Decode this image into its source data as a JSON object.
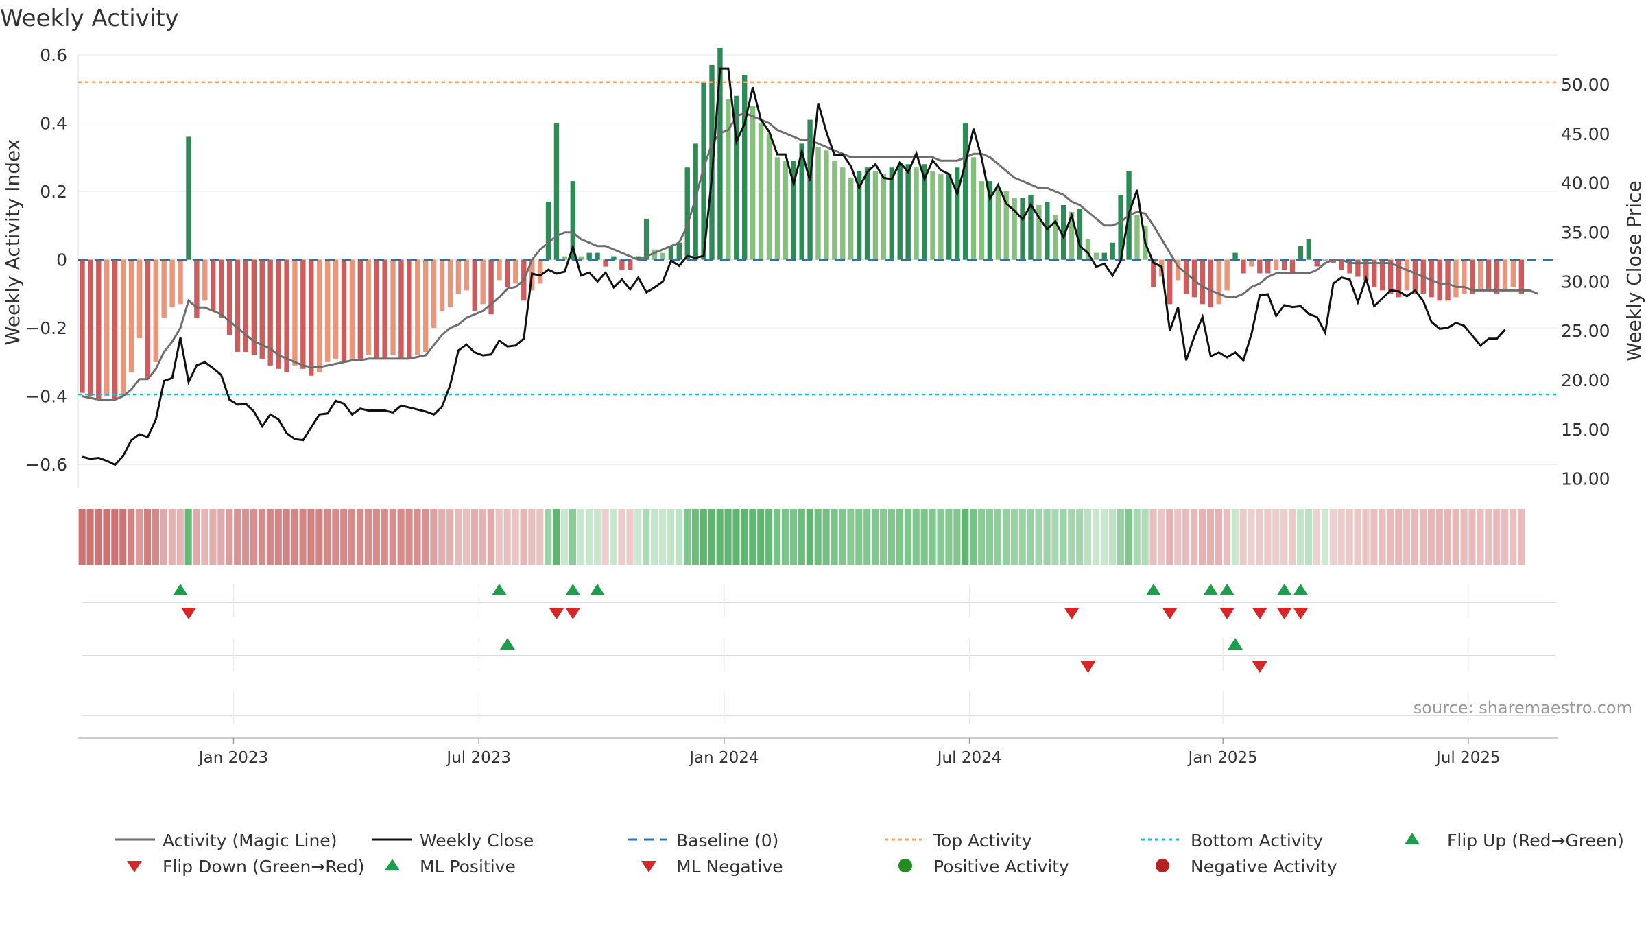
{
  "chart_data": {
    "type": "bar",
    "title": "Weekly Activity",
    "ylabel_left": "Weekly Activity Index",
    "ylabel_right": "Weekly Close Price",
    "source": "source: sharemaestro.com",
    "ylim_left": [
      -0.67,
      0.6
    ],
    "ylim_right": [
      9.0,
      53.0
    ],
    "yticks_left": [
      0.6,
      0.4,
      0.2,
      0,
      -0.2,
      -0.4,
      -0.6
    ],
    "yticks_left_labels": [
      "0.6",
      "0.4",
      "0.2",
      "0",
      "−0.2",
      "−0.4",
      "−0.6"
    ],
    "yticks_right": [
      50,
      45,
      40,
      35,
      30,
      25,
      20,
      15,
      10
    ],
    "yticks_right_labels": [
      "50.00",
      "45.00",
      "40.00",
      "35.00",
      "30.00",
      "25.00",
      "20.00",
      "15.00",
      "10.00"
    ],
    "x_tick_positions": [
      19,
      49,
      79,
      109,
      140,
      170
    ],
    "x_tick_labels": [
      "Jan 2023",
      "Jul 2023",
      "Jan 2024",
      "Jul 2024",
      "Jan 2025",
      "Jul 2025"
    ],
    "n_weeks": 181,
    "top_activity": 0.52,
    "bottom_activity": -0.395,
    "activity": [
      -0.39,
      -0.4,
      -0.41,
      -0.4,
      -0.41,
      -0.4,
      -0.33,
      -0.23,
      -0.35,
      -0.3,
      -0.17,
      -0.14,
      -0.13,
      0.36,
      -0.17,
      -0.12,
      -0.15,
      -0.17,
      -0.22,
      -0.27,
      -0.27,
      -0.28,
      -0.29,
      -0.31,
      -0.32,
      -0.33,
      -0.31,
      -0.32,
      -0.34,
      -0.33,
      -0.3,
      -0.29,
      -0.3,
      -0.29,
      -0.29,
      -0.28,
      -0.29,
      -0.29,
      -0.28,
      -0.29,
      -0.29,
      -0.28,
      -0.27,
      -0.2,
      -0.15,
      -0.14,
      -0.1,
      -0.09,
      -0.15,
      -0.13,
      -0.16,
      -0.06,
      -0.08,
      -0.07,
      -0.12,
      -0.09,
      -0.07,
      0.17,
      0.4,
      0.01,
      0.23,
      0.01,
      0.02,
      0.02,
      -0.02,
      0.01,
      -0.03,
      -0.03,
      0.01,
      0.12,
      0.03,
      0.02,
      0.04,
      0.05,
      0.27,
      0.34,
      0.52,
      0.57,
      0.62,
      0.47,
      0.48,
      0.54,
      0.45,
      0.4,
      0.37,
      0.3,
      0.29,
      0.29,
      0.34,
      0.41,
      0.33,
      0.32,
      0.29,
      0.27,
      0.24,
      0.26,
      0.27,
      0.26,
      0.25,
      0.27,
      0.28,
      0.28,
      0.27,
      0.28,
      0.26,
      0.25,
      0.25,
      0.27,
      0.4,
      0.3,
      0.23,
      0.23,
      0.21,
      0.2,
      0.18,
      0.18,
      0.19,
      0.16,
      0.17,
      0.13,
      0.16,
      0.14,
      0.15,
      0.06,
      0.02,
      0.02,
      0.05,
      0.19,
      0.26,
      0.13,
      0.1,
      -0.08,
      -0.05,
      -0.13,
      -0.06,
      -0.1,
      -0.11,
      -0.13,
      -0.14,
      -0.13,
      -0.09,
      0.02,
      -0.04,
      -0.02,
      -0.04,
      -0.04,
      -0.03,
      -0.03,
      -0.04,
      0.04,
      0.06,
      -0.02,
      0,
      -0.01,
      -0.03,
      -0.04,
      -0.05,
      -0.06,
      -0.08,
      -0.09,
      -0.1,
      -0.11,
      -0.09,
      -0.1,
      -0.1,
      -0.11,
      -0.12,
      -0.12,
      -0.11,
      -0.1,
      -0.1,
      -0.09,
      -0.09,
      -0.1,
      -0.09,
      -0.08,
      -0.1
    ],
    "magic_line": [
      -0.4,
      -0.405,
      -0.41,
      -0.41,
      -0.41,
      -0.4,
      -0.38,
      -0.35,
      -0.35,
      -0.32,
      -0.27,
      -0.24,
      -0.2,
      -0.12,
      -0.14,
      -0.14,
      -0.15,
      -0.16,
      -0.18,
      -0.2,
      -0.22,
      -0.24,
      -0.25,
      -0.26,
      -0.28,
      -0.29,
      -0.3,
      -0.31,
      -0.315,
      -0.315,
      -0.31,
      -0.305,
      -0.3,
      -0.295,
      -0.295,
      -0.29,
      -0.29,
      -0.29,
      -0.29,
      -0.29,
      -0.29,
      -0.285,
      -0.28,
      -0.25,
      -0.22,
      -0.2,
      -0.19,
      -0.17,
      -0.16,
      -0.15,
      -0.13,
      -0.11,
      -0.085,
      -0.08,
      -0.06,
      0.0,
      0.03,
      0.05,
      0.07,
      0.08,
      0.08,
      0.06,
      0.05,
      0.04,
      0.04,
      0.03,
      0.02,
      0.01,
      0.0,
      0.01,
      0.02,
      0.03,
      0.04,
      0.05,
      0.1,
      0.18,
      0.27,
      0.34,
      0.37,
      0.38,
      0.42,
      0.43,
      0.42,
      0.41,
      0.4,
      0.38,
      0.37,
      0.36,
      0.35,
      0.35,
      0.34,
      0.33,
      0.32,
      0.31,
      0.3,
      0.3,
      0.3,
      0.3,
      0.3,
      0.3,
      0.3,
      0.3,
      0.3,
      0.3,
      0.3,
      0.29,
      0.29,
      0.29,
      0.3,
      0.31,
      0.31,
      0.3,
      0.28,
      0.26,
      0.24,
      0.23,
      0.22,
      0.21,
      0.21,
      0.2,
      0.19,
      0.17,
      0.16,
      0.14,
      0.12,
      0.1,
      0.1,
      0.11,
      0.13,
      0.14,
      0.135,
      0.1,
      0.06,
      0.02,
      -0.02,
      -0.04,
      -0.06,
      -0.08,
      -0.09,
      -0.1,
      -0.11,
      -0.11,
      -0.1,
      -0.08,
      -0.07,
      -0.05,
      -0.04,
      -0.04,
      -0.04,
      -0.04,
      -0.04,
      -0.03,
      -0.01,
      0.0,
      0.0,
      -0.01,
      -0.01,
      -0.01,
      -0.01,
      -0.01,
      -0.01,
      -0.02,
      -0.03,
      -0.04,
      -0.05,
      -0.06,
      -0.07,
      -0.07,
      -0.08,
      -0.08,
      -0.09,
      -0.09,
      -0.09,
      -0.09,
      -0.09,
      -0.09,
      -0.09,
      -0.09,
      -0.1
    ],
    "weekly_close": [
      12.2,
      12.0,
      12.1,
      11.8,
      11.4,
      12.3,
      13.9,
      14.5,
      14.2,
      16.0,
      19.9,
      20.2,
      24.3,
      19.8,
      21.5,
      21.8,
      21.2,
      20.5,
      18.0,
      17.5,
      17.6,
      16.8,
      15.3,
      16.5,
      16.0,
      14.6,
      14.0,
      13.9,
      15.2,
      16.5,
      16.6,
      17.9,
      17.6,
      16.5,
      17.1,
      16.9,
      16.9,
      16.9,
      16.7,
      17.4,
      17.2,
      17.0,
      16.8,
      16.5,
      17.3,
      19.5,
      23.0,
      23.6,
      22.8,
      22.5,
      22.6,
      24.0,
      23.4,
      23.5,
      24.2,
      30.8,
      30.6,
      31.2,
      30.8,
      31.0,
      33.5,
      30.6,
      30.9,
      30.0,
      30.9,
      29.4,
      30.2,
      29.2,
      30.4,
      28.9,
      29.4,
      30.0,
      32.1,
      31.6,
      32.6,
      32.4,
      32.6,
      40.6,
      51.6,
      51.6,
      44.2,
      46.0,
      49.7,
      46.4,
      45.2,
      42.9,
      42.9,
      39.9,
      43.2,
      40.2,
      48.1,
      45.2,
      42.8,
      42.9,
      41.7,
      39.5,
      41.1,
      41.9,
      40.5,
      40.4,
      42.1,
      41.1,
      43.0,
      40.4,
      42.3,
      41.3,
      40.9,
      38.9,
      42.0,
      45.5,
      42.5,
      38.4,
      39.8,
      37.9,
      37.2,
      36.3,
      37.8,
      36.5,
      35.3,
      36.1,
      34.5,
      36.7,
      33.6,
      32.9,
      31.5,
      31.8,
      30.6,
      32.1,
      36.9,
      39.3,
      33.9,
      31.9,
      31.5,
      25.0,
      27.4,
      22.0,
      24.4,
      26.4,
      22.4,
      22.8,
      22.3,
      22.8,
      22.0,
      24.7,
      28.6,
      28.7,
      26.5,
      27.6,
      27.4,
      27.5,
      26.7,
      26.4,
      24.8,
      29.8,
      30.4,
      30.2,
      27.9,
      30.3,
      27.5,
      28.3,
      29.1,
      29.0,
      28.5,
      29.1,
      28.0,
      25.9,
      25.2,
      25.3,
      25.8,
      25.5,
      24.5,
      23.5,
      24.2,
      24.2,
      25.1
    ],
    "series": [
      {
        "name": "Activity (Magic Line)",
        "key": "magic_line"
      },
      {
        "name": "Weekly Close",
        "key": "weekly_close"
      },
      {
        "name": "Baseline (0)",
        "value": 0
      },
      {
        "name": "Top Activity",
        "key": "top_activity"
      },
      {
        "name": "Bottom Activity",
        "key": "bottom_activity"
      }
    ],
    "flip_up_weeks": [
      12,
      51,
      60,
      63,
      131,
      138,
      140,
      147,
      149
    ],
    "flip_down_weeks": [
      13,
      58,
      60,
      121,
      133,
      140,
      144,
      147,
      149
    ],
    "ml_positive_weeks": [
      52,
      141
    ],
    "ml_negative_weeks": [
      123,
      144
    ],
    "positive_activity_weeks": [],
    "negative_activity_weeks": []
  },
  "legend": {
    "magic_line": "Activity (Magic Line)",
    "weekly_close": "Weekly Close",
    "baseline": "Baseline (0)",
    "top_activity": "Top Activity",
    "bottom_activity": "Bottom Activity",
    "flip_up": "Flip Up (Red→Green)",
    "flip_down": "Flip Down (Green→Red)",
    "ml_positive": "ML Positive",
    "ml_negative": "ML Negative",
    "positive_activity": "Positive Activity",
    "negative_activity": "Negative Activity"
  },
  "colors": {
    "dark_green": "#2e8b57",
    "light_green": "#86bf7e",
    "dark_red": "#cd5c5c",
    "light_red": "#e9967a",
    "magic_line": "#6e6e6e",
    "close": "#111111",
    "baseline": "#1f77b4",
    "top": "#f4a261",
    "bottom": "#17becf",
    "marker_green": "#1e9e4a",
    "marker_red": "#d62728",
    "dot_green": "#228b22",
    "dot_red": "#b22222",
    "grid": "#e6e6e6",
    "axis_text": "#333333"
  }
}
